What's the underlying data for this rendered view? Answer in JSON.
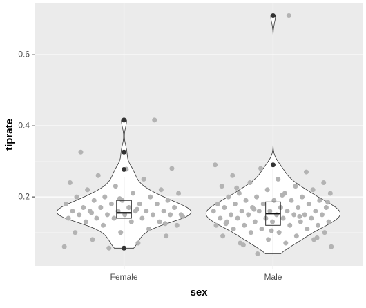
{
  "chart_data": {
    "type": "violin",
    "x_label": "sex",
    "y_label": "tiprate",
    "categories": [
      "Female",
      "Male"
    ],
    "ylim": [
      0.006,
      0.744
    ],
    "yticks": [
      0.2,
      0.4,
      0.6
    ],
    "minor_yticks": [
      0.1,
      0.3,
      0.5,
      0.7
    ],
    "grid": true,
    "point_color": "#b3b3b3",
    "series": [
      {
        "values": [
          0.06,
          0.07,
          0.08,
          0.09,
          0.1,
          0.1,
          0.11,
          0.12,
          0.12,
          0.13,
          0.13,
          0.13,
          0.14,
          0.14,
          0.14,
          0.14,
          0.15,
          0.15,
          0.15,
          0.15,
          0.15,
          0.15,
          0.16,
          0.16,
          0.16,
          0.16,
          0.16,
          0.16,
          0.17,
          0.17,
          0.17,
          0.17,
          0.18,
          0.18,
          0.18,
          0.18,
          0.19,
          0.19,
          0.19,
          0.2,
          0.2,
          0.2,
          0.21,
          0.21,
          0.22,
          0.22,
          0.23,
          0.24,
          0.25,
          0.26,
          0.28,
          0.278,
          0.326,
          0.416,
          0.056,
          0.145,
          0.165,
          0.155,
          0.125,
          0.195
        ],
        "box": {
          "min": 0.056,
          "q1": 0.14,
          "median": 0.155,
          "q3": 0.19,
          "max": 0.255
        },
        "outliers": [
          0.056,
          0.277,
          0.326,
          0.416
        ]
      },
      {
        "values": [
          0.04,
          0.06,
          0.07,
          0.07,
          0.08,
          0.08,
          0.09,
          0.09,
          0.1,
          0.1,
          0.1,
          0.11,
          0.11,
          0.11,
          0.12,
          0.12,
          0.12,
          0.12,
          0.13,
          0.13,
          0.13,
          0.13,
          0.13,
          0.14,
          0.14,
          0.14,
          0.14,
          0.14,
          0.15,
          0.15,
          0.15,
          0.15,
          0.15,
          0.15,
          0.16,
          0.16,
          0.16,
          0.16,
          0.16,
          0.16,
          0.17,
          0.17,
          0.17,
          0.17,
          0.17,
          0.18,
          0.18,
          0.18,
          0.18,
          0.19,
          0.19,
          0.19,
          0.19,
          0.2,
          0.2,
          0.2,
          0.21,
          0.21,
          0.21,
          0.22,
          0.22,
          0.23,
          0.23,
          0.24,
          0.24,
          0.25,
          0.26,
          0.27,
          0.28,
          0.29,
          0.71,
          0.065,
          0.085,
          0.105,
          0.125,
          0.145,
          0.165,
          0.185,
          0.205,
          0.225
        ],
        "box": {
          "min": 0.036,
          "q1": 0.12,
          "median": 0.153,
          "q3": 0.186,
          "max": 0.28
        },
        "outliers": [
          0.29,
          0.71
        ]
      }
    ]
  }
}
